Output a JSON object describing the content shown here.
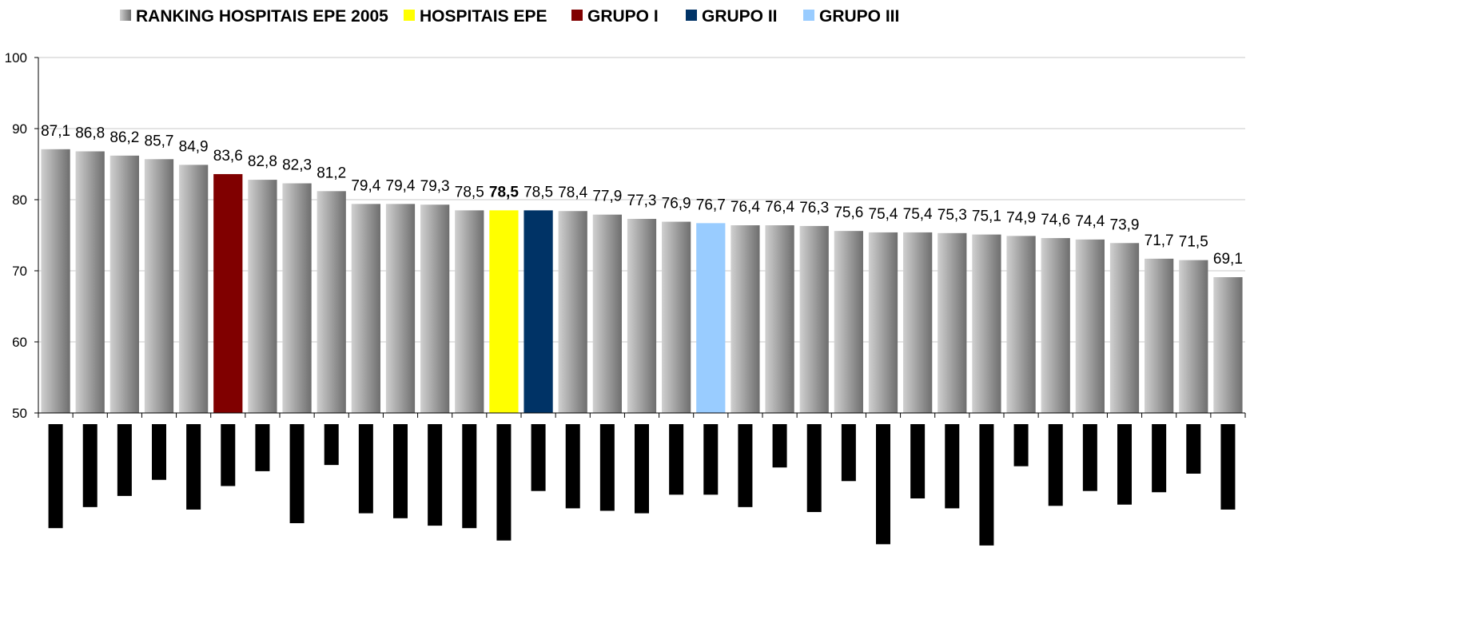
{
  "chart_data": {
    "type": "bar",
    "legend": [
      {
        "label": "RANKING HOSPITAIS EPE 2005",
        "color": "#8c8c8c"
      },
      {
        "label": "HOSPITAIS EPE",
        "color": "#ffff00"
      },
      {
        "label": "GRUPO I",
        "color": "#800000"
      },
      {
        "label": "GRUPO II",
        "color": "#003366"
      },
      {
        "label": "GRUPO III",
        "color": "#99ccff"
      }
    ],
    "legend_position": "top",
    "ylim": [
      50,
      100
    ],
    "yticks": [
      "50",
      "60",
      "70",
      "80",
      "90",
      "100"
    ],
    "grid": true,
    "values": [
      87.1,
      86.8,
      86.2,
      85.7,
      84.9,
      83.6,
      82.8,
      82.3,
      81.2,
      79.4,
      79.4,
      79.3,
      78.5,
      78.5,
      78.5,
      78.4,
      77.9,
      77.3,
      76.9,
      76.7,
      76.4,
      76.4,
      76.3,
      75.6,
      75.4,
      75.4,
      75.3,
      75.1,
      74.9,
      74.6,
      74.4,
      73.9,
      71.7,
      71.5,
      69.1
    ],
    "labels": [
      "87,1",
      "86,8",
      "86,2",
      "85,7",
      "84,9",
      "83,6",
      "82,8",
      "82,3",
      "81,2",
      "79,4",
      "79,4",
      "79,3",
      "78,5",
      "78,5",
      "78,5",
      "78,4",
      "77,9",
      "77,3",
      "76,9",
      "76,7",
      "76,4",
      "76,4",
      "76,3",
      "75,6",
      "75,4",
      "75,4",
      "75,3",
      "75,1",
      "74,9",
      "74,6",
      "74,4",
      "73,9",
      "71,7",
      "71,5",
      "69,1"
    ],
    "bar_colors": [
      "gray",
      "gray",
      "gray",
      "gray",
      "gray",
      "#800000",
      "gray",
      "gray",
      "gray",
      "gray",
      "gray",
      "gray",
      "gray",
      "#ffff00",
      "#003366",
      "gray",
      "gray",
      "gray",
      "gray",
      "#99ccff",
      "gray",
      "gray",
      "gray",
      "gray",
      "gray",
      "gray",
      "gray",
      "gray",
      "gray",
      "gray",
      "gray",
      "gray",
      "gray",
      "gray",
      "gray"
    ],
    "bold_label_index": 13,
    "redacted_category_lengths": [
      0.84,
      0.67,
      0.58,
      0.45,
      0.69,
      0.5,
      0.38,
      0.8,
      0.33,
      0.72,
      0.76,
      0.82,
      0.84,
      0.94,
      0.54,
      0.68,
      0.7,
      0.72,
      0.57,
      0.57,
      0.67,
      0.35,
      0.71,
      0.46,
      0.97,
      0.6,
      0.68,
      0.98,
      0.34,
      0.66,
      0.54,
      0.65,
      0.55,
      0.4,
      0.69
    ]
  }
}
